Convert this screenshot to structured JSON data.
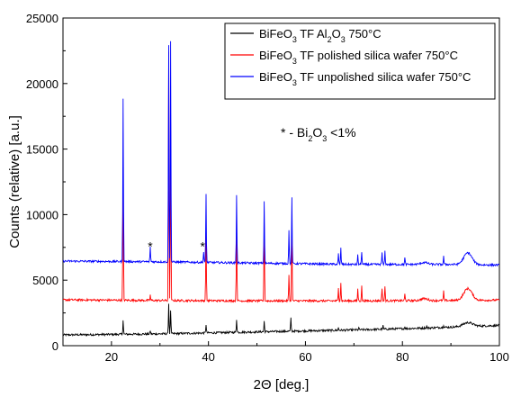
{
  "chart_data": {
    "type": "line",
    "xlabel": "2Θ [deg.]",
    "ylabel": "Counts (relative) [a.u.]",
    "xlim": [
      10,
      100
    ],
    "ylim": [
      0,
      25000
    ],
    "xticks": [
      "20",
      "40",
      "60",
      "80",
      "100"
    ],
    "yticks": [
      "0",
      "5000",
      "10000",
      "15000",
      "20000",
      "25000"
    ],
    "legend_position": "top-right",
    "grid": false,
    "series": [
      {
        "name_parts": [
          "BiFeO",
          "3",
          " TF Al",
          "2",
          "O",
          "3",
          " 750°C"
        ],
        "name": "BiFeO3 TF Al2O3 750°C",
        "color": "#000000",
        "baseline": [
          [
            10,
            820
          ],
          [
            30,
            900
          ],
          [
            50,
            1050
          ],
          [
            70,
            1200
          ],
          [
            85,
            1350
          ],
          [
            100,
            1550
          ]
        ],
        "humps": [
          [
            93.5,
            300,
            1.4
          ]
        ],
        "peaks": [
          [
            22.4,
            1100
          ],
          [
            28.0,
            250
          ],
          [
            31.8,
            2300
          ],
          [
            32.2,
            1800
          ],
          [
            39.5,
            650
          ],
          [
            45.8,
            1000
          ],
          [
            51.5,
            800
          ],
          [
            57.0,
            1000
          ],
          [
            66.8,
            200
          ],
          [
            71.0,
            150
          ],
          [
            76.0,
            250
          ],
          [
            80.5,
            150
          ],
          [
            85.0,
            150
          ],
          [
            88.5,
            200
          ]
        ]
      },
      {
        "name_parts": [
          "BiFeO",
          "3",
          " TF polished silica wafer 750°C"
        ],
        "name": "BiFeO3 TF polished silica wafer 750°C",
        "color": "#ff0000",
        "baseline": [
          [
            10,
            3500
          ],
          [
            30,
            3450
          ],
          [
            50,
            3420
          ],
          [
            70,
            3420
          ],
          [
            90,
            3450
          ],
          [
            100,
            3480
          ]
        ],
        "humps": [
          [
            93.5,
            900,
            1.2
          ],
          [
            84.5,
            150,
            1.0
          ]
        ],
        "peaks": [
          [
            22.4,
            10100
          ],
          [
            28.0,
            400
          ],
          [
            31.8,
            18900
          ],
          [
            32.2,
            13500
          ],
          [
            39.5,
            5300
          ],
          [
            45.8,
            6200
          ],
          [
            51.5,
            6000
          ],
          [
            56.6,
            2000
          ],
          [
            57.2,
            5500
          ],
          [
            66.8,
            1000
          ],
          [
            67.3,
            1400
          ],
          [
            70.8,
            900
          ],
          [
            71.6,
            1100
          ],
          [
            75.8,
            1000
          ],
          [
            76.4,
            1100
          ],
          [
            80.5,
            500
          ],
          [
            88.5,
            700
          ]
        ]
      },
      {
        "name_parts": [
          "BiFeO",
          "3",
          " TF unpolished silica wafer 750°C"
        ],
        "name": "BiFeO3 TF unpolished silica wafer 750°C",
        "color": "#0000ff",
        "baseline": [
          [
            10,
            6450
          ],
          [
            30,
            6400
          ],
          [
            50,
            6300
          ],
          [
            70,
            6200
          ],
          [
            90,
            6200
          ],
          [
            100,
            6150
          ]
        ],
        "humps": [
          [
            93.5,
            900,
            1.2
          ],
          [
            84.5,
            150,
            1.0
          ]
        ],
        "peaks": [
          [
            22.4,
            12500
          ],
          [
            28.0,
            1200
          ],
          [
            31.8,
            16500
          ],
          [
            32.2,
            16900
          ],
          [
            39.0,
            800
          ],
          [
            39.5,
            5200
          ],
          [
            45.8,
            5200
          ],
          [
            51.5,
            4700
          ],
          [
            56.6,
            2500
          ],
          [
            57.2,
            5000
          ],
          [
            66.8,
            800
          ],
          [
            67.3,
            1200
          ],
          [
            70.8,
            700
          ],
          [
            71.6,
            1000
          ],
          [
            75.8,
            900
          ],
          [
            76.4,
            1000
          ],
          [
            80.5,
            500
          ],
          [
            88.5,
            600
          ]
        ]
      }
    ],
    "annotation_parts": [
      "* - Bi",
      "2",
      "O",
      "3",
      " <1%"
    ],
    "annotation": "* - Bi2O3 <1%",
    "star_labels": [
      "*",
      "*"
    ],
    "star_positions": [
      [
        28.0,
        7800
      ],
      [
        38.8,
        7800
      ]
    ]
  }
}
